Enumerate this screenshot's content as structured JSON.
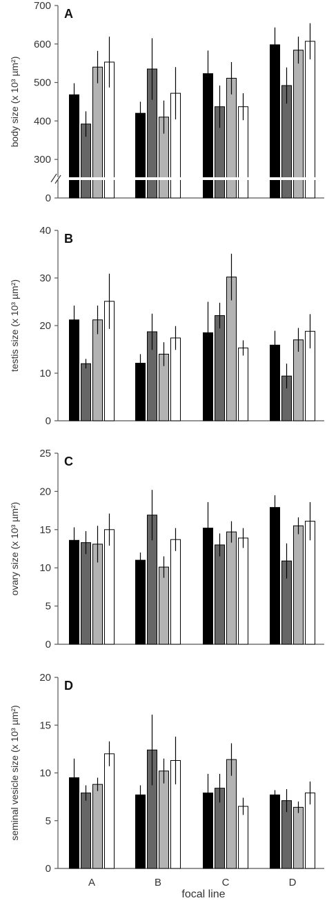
{
  "colors": [
    "#000000",
    "#666666",
    "#b3b3b3",
    "#ffffff"
  ],
  "chart_data": [
    {
      "type": "bar",
      "panel": "A",
      "ylabel": "body size (x 10³ µm²)",
      "ylim": [
        0,
        700
      ],
      "axis_break": true,
      "yticks": [
        "0",
        "300",
        "400",
        "500",
        "600",
        "700"
      ],
      "categories": [
        "A",
        "B",
        "C",
        "D"
      ],
      "series": [
        {
          "values": [
            468,
            420,
            523,
            598
          ],
          "errors": [
            30,
            30,
            60,
            45
          ]
        },
        {
          "values": [
            392,
            535,
            437,
            492
          ],
          "errors": [
            33,
            80,
            55,
            47
          ]
        },
        {
          "values": [
            540,
            410,
            511,
            584
          ],
          "errors": [
            42,
            43,
            42,
            35
          ]
        },
        {
          "values": [
            553,
            472,
            437,
            607
          ],
          "errors": [
            66,
            68,
            35,
            47
          ]
        }
      ]
    },
    {
      "type": "bar",
      "panel": "B",
      "ylabel": "testis size (x 10³ µm²)",
      "ylim": [
        0,
        40
      ],
      "yticks": [
        "0",
        "10",
        "20",
        "30",
        "40"
      ],
      "categories": [
        "A",
        "B",
        "C",
        "D"
      ],
      "series": [
        {
          "values": [
            21.2,
            12.1,
            18.5,
            15.9
          ],
          "errors": [
            3.0,
            1.9,
            6.5,
            3.0
          ]
        },
        {
          "values": [
            12.0,
            18.7,
            22.1,
            9.4
          ],
          "errors": [
            1.0,
            3.8,
            2.7,
            2.6
          ]
        },
        {
          "values": [
            21.2,
            14.0,
            30.2,
            17.0
          ],
          "errors": [
            3.0,
            2.5,
            4.9,
            2.5
          ]
        },
        {
          "values": [
            25.1,
            17.4,
            15.3,
            18.8
          ],
          "errors": [
            5.8,
            2.5,
            1.6,
            3.6
          ]
        }
      ]
    },
    {
      "type": "bar",
      "panel": "C",
      "ylabel": "ovary size (x 10³ µm²)",
      "ylim": [
        0,
        25
      ],
      "yticks": [
        "0",
        "5",
        "10",
        "15",
        "20",
        "25"
      ],
      "categories": [
        "A",
        "B",
        "C",
        "D"
      ],
      "series": [
        {
          "values": [
            13.6,
            11.0,
            15.2,
            17.9
          ],
          "errors": [
            1.7,
            1.0,
            3.4,
            1.6
          ]
        },
        {
          "values": [
            13.3,
            16.9,
            13.0,
            10.9
          ],
          "errors": [
            1.5,
            3.3,
            1.5,
            2.3
          ]
        },
        {
          "values": [
            13.1,
            10.1,
            14.7,
            15.5
          ],
          "errors": [
            2.4,
            1.4,
            1.4,
            1.1
          ]
        },
        {
          "values": [
            15.0,
            13.7,
            13.9,
            16.1
          ],
          "errors": [
            2.1,
            1.5,
            1.3,
            2.5
          ]
        }
      ]
    },
    {
      "type": "bar",
      "panel": "D",
      "ylabel": "seminal vesicle size (x 10³ µm²)",
      "xlabel": "focal line",
      "ylim": [
        0,
        20
      ],
      "yticks": [
        "0",
        "5",
        "10",
        "15",
        "20"
      ],
      "categories": [
        "A",
        "B",
        "C",
        "D"
      ],
      "series": [
        {
          "values": [
            9.5,
            7.7,
            7.9,
            7.7
          ],
          "errors": [
            2.0,
            1.0,
            2.0,
            0.5
          ]
        },
        {
          "values": [
            7.9,
            12.4,
            8.4,
            7.1
          ],
          "errors": [
            0.8,
            3.7,
            1.5,
            1.2
          ]
        },
        {
          "values": [
            8.8,
            10.2,
            11.4,
            6.4
          ],
          "errors": [
            0.7,
            1.3,
            1.7,
            0.6
          ]
        },
        {
          "values": [
            12.0,
            11.3,
            6.5,
            7.9
          ],
          "errors": [
            1.3,
            2.5,
            0.9,
            1.2
          ]
        }
      ]
    }
  ]
}
